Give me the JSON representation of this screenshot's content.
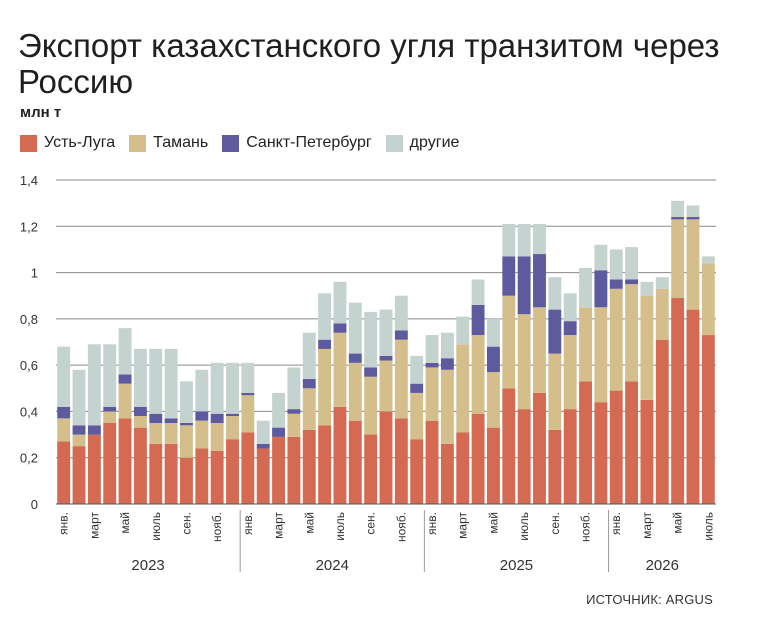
{
  "title": "Экспорт казахстанского угля транзитом через Россию",
  "subtitle": "млн т",
  "source": "ИСТОЧНИК: ARGUS",
  "legend": [
    {
      "name": "Усть-Луга",
      "color": "#d56a52"
    },
    {
      "name": "Тамань",
      "color": "#d4bf8c"
    },
    {
      "name": "Санкт-Петербург",
      "color": "#5e5a9e"
    },
    {
      "name": "другие",
      "color": "#c4d3cf"
    }
  ],
  "chart_data": {
    "type": "bar",
    "stacked": true,
    "title": "Экспорт казахстанского угля транзитом через Россию",
    "ylabel": "млн т",
    "ylim": [
      0,
      1.4
    ],
    "yticks": [
      0,
      0.2,
      0.4,
      0.6,
      0.8,
      1,
      1.2,
      1.4
    ],
    "ytick_labels": [
      "0",
      "0,2",
      "0,4",
      "0,6",
      "0,8",
      "1",
      "1,2",
      "1,4"
    ],
    "grid": true,
    "legend_position": "top-left",
    "month_labels": [
      {
        "index": 0,
        "label": "янв."
      },
      {
        "index": 2,
        "label": "март"
      },
      {
        "index": 4,
        "label": "май"
      },
      {
        "index": 6,
        "label": "июль"
      },
      {
        "index": 8,
        "label": "сен."
      },
      {
        "index": 10,
        "label": "нояб."
      },
      {
        "index": 12,
        "label": "янв."
      },
      {
        "index": 14,
        "label": "март"
      },
      {
        "index": 16,
        "label": "май"
      },
      {
        "index": 18,
        "label": "июль"
      },
      {
        "index": 20,
        "label": "сен."
      },
      {
        "index": 22,
        "label": "нояб."
      },
      {
        "index": 24,
        "label": "янв."
      },
      {
        "index": 26,
        "label": "март"
      },
      {
        "index": 28,
        "label": "май"
      },
      {
        "index": 30,
        "label": "июль"
      },
      {
        "index": 32,
        "label": "сен."
      },
      {
        "index": 34,
        "label": "нояб."
      },
      {
        "index": 36,
        "label": "янв."
      },
      {
        "index": 38,
        "label": "март"
      },
      {
        "index": 40,
        "label": "май"
      },
      {
        "index": 42,
        "label": "июль"
      }
    ],
    "years": [
      {
        "label": "2023",
        "start": 0,
        "end": 11
      },
      {
        "label": "2024",
        "start": 12,
        "end": 23
      },
      {
        "label": "2025",
        "start": 24,
        "end": 35
      },
      {
        "label": "2026",
        "start": 36,
        "end": 42
      }
    ],
    "series": [
      {
        "name": "Усть-Луга",
        "color": "#d56a52",
        "values": [
          0.27,
          0.25,
          0.3,
          0.35,
          0.37,
          0.33,
          0.26,
          0.26,
          0.2,
          0.24,
          0.23,
          0.28,
          0.31,
          0.24,
          0.29,
          0.29,
          0.32,
          0.34,
          0.42,
          0.36,
          0.3,
          0.4,
          0.37,
          0.28,
          0.36,
          0.26,
          0.31,
          0.39,
          0.33,
          0.5,
          0.41,
          0.48,
          0.32,
          0.41,
          0.53,
          0.44,
          0.49,
          0.53,
          0.45,
          0.71,
          0.89,
          0.84,
          0.73
        ]
      },
      {
        "name": "Тамань",
        "color": "#d4bf8c",
        "values": [
          0.1,
          0.05,
          0.0,
          0.05,
          0.15,
          0.05,
          0.09,
          0.09,
          0.14,
          0.12,
          0.12,
          0.1,
          0.16,
          0.0,
          0.0,
          0.1,
          0.18,
          0.33,
          0.32,
          0.25,
          0.25,
          0.22,
          0.34,
          0.2,
          0.23,
          0.32,
          0.38,
          0.34,
          0.24,
          0.4,
          0.41,
          0.37,
          0.33,
          0.32,
          0.32,
          0.41,
          0.44,
          0.42,
          0.45,
          0.22,
          0.34,
          0.39,
          0.31
        ]
      },
      {
        "name": "Санкт-Петербург",
        "color": "#5e5a9e",
        "values": [
          0.05,
          0.04,
          0.04,
          0.02,
          0.04,
          0.04,
          0.04,
          0.02,
          0.01,
          0.04,
          0.04,
          0.01,
          0.01,
          0.02,
          0.04,
          0.02,
          0.04,
          0.04,
          0.04,
          0.04,
          0.04,
          0.02,
          0.04,
          0.04,
          0.02,
          0.05,
          0.0,
          0.13,
          0.11,
          0.17,
          0.25,
          0.23,
          0.19,
          0.06,
          0.0,
          0.16,
          0.04,
          0.02,
          0.0,
          0.0,
          0.01,
          0.01,
          0.0
        ]
      },
      {
        "name": "другие",
        "color": "#c4d3cf",
        "values": [
          0.26,
          0.24,
          0.35,
          0.27,
          0.2,
          0.25,
          0.28,
          0.3,
          0.18,
          0.18,
          0.22,
          0.22,
          0.13,
          0.1,
          0.15,
          0.18,
          0.2,
          0.2,
          0.18,
          0.22,
          0.24,
          0.2,
          0.15,
          0.12,
          0.12,
          0.11,
          0.12,
          0.11,
          0.12,
          0.14,
          0.14,
          0.13,
          0.14,
          0.12,
          0.17,
          0.11,
          0.13,
          0.14,
          0.06,
          0.05,
          0.07,
          0.05,
          0.03
        ]
      }
    ]
  }
}
